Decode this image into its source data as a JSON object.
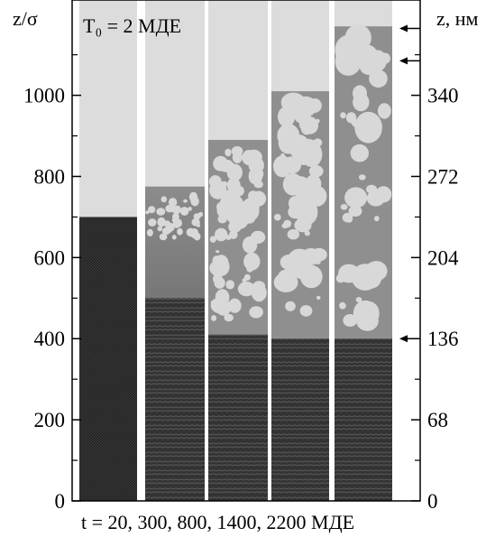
{
  "figure": {
    "left_axis_label": "z/σ",
    "right_axis_label": "z, нм",
    "temperature_label": "T₀ = 2 МДЕ",
    "time_label": "t = 20,  300,   800,  1400,  2200 МДЕ",
    "left_ticks": [
      "0",
      "200",
      "400",
      "600",
      "800",
      "1000"
    ],
    "right_ticks": [
      "0",
      "68",
      "136",
      "204",
      "272",
      "340"
    ]
  },
  "chart_data": {
    "type": "image-strip",
    "xlabel": "",
    "ylabel": "z/σ",
    "y2label": "z, нм",
    "ylim": [
      0,
      1180
    ],
    "y_ticks": [
      0,
      200,
      400,
      600,
      800,
      1000
    ],
    "y2_ticks": [
      0,
      68,
      136,
      204,
      272,
      340
    ],
    "panels": [
      {
        "t": 20,
        "crystal_top": 0,
        "liquid_top": 700
      },
      {
        "t": 300,
        "crystal_top": 500,
        "liquid_top": 775
      },
      {
        "t": 800,
        "crystal_top": 410,
        "liquid_top": 890
      },
      {
        "t": 1400,
        "crystal_top": 400,
        "liquid_top": 1010
      },
      {
        "t": 2200,
        "crystal_top": 400,
        "liquid_top": 1170
      }
    ],
    "arrows_right": [
      1165,
      1085,
      400
    ]
  }
}
